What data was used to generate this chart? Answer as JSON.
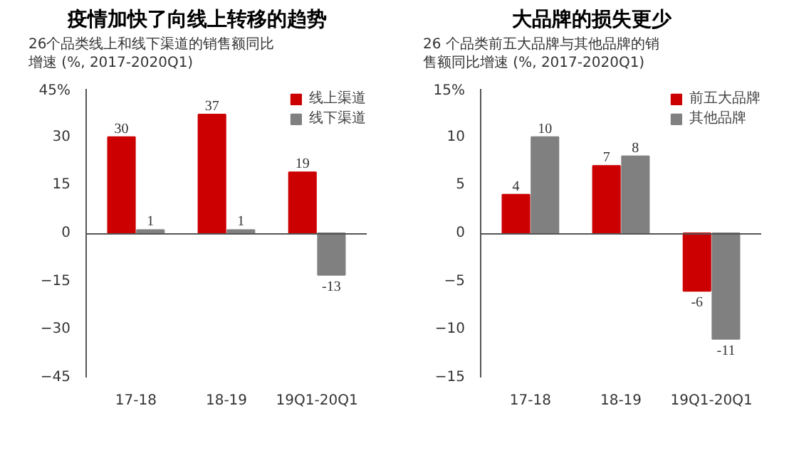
{
  "chart_data": [
    {
      "type": "bar",
      "title": "疫情加快了向线上转移的趋势",
      "subtitle": "26个品类线上和线下渠道的销售额同比增速 (%, 2017-2020Q1)",
      "categories": [
        "17-18",
        "18-19",
        "19Q1-20Q1"
      ],
      "series": [
        {
          "name": "线上渠道",
          "color": "#cc0000",
          "values": [
            30,
            37,
            19
          ]
        },
        {
          "name": "线下渠道",
          "color": "#808080",
          "values": [
            1,
            1,
            -13
          ]
        }
      ],
      "ylim": [
        -45,
        45
      ],
      "yticks": [
        -45,
        -30,
        -15,
        0,
        15,
        30,
        {
          "value": 45,
          "label": "45%"
        }
      ],
      "data_labels": true,
      "legend": "top right"
    },
    {
      "type": "bar",
      "title": "大品牌的损失更少",
      "subtitle": "26 个品类前五大品牌与其他品牌的销售额同比增速  (%, 2017-2020Q1)",
      "categories": [
        "17-18",
        "18-19",
        "19Q1-20Q1"
      ],
      "series": [
        {
          "name": "前五大品牌",
          "color": "#cc0000",
          "values": [
            4,
            7,
            -6
          ]
        },
        {
          "name": "其他品牌",
          "color": "#808080",
          "values": [
            10,
            8,
            -11
          ]
        }
      ],
      "ylim": [
        -15,
        15
      ],
      "yticks": [
        -15,
        -10,
        -5,
        0,
        5,
        10,
        {
          "value": 15,
          "label": "15%"
        }
      ],
      "data_labels": true,
      "legend": "top right"
    }
  ]
}
